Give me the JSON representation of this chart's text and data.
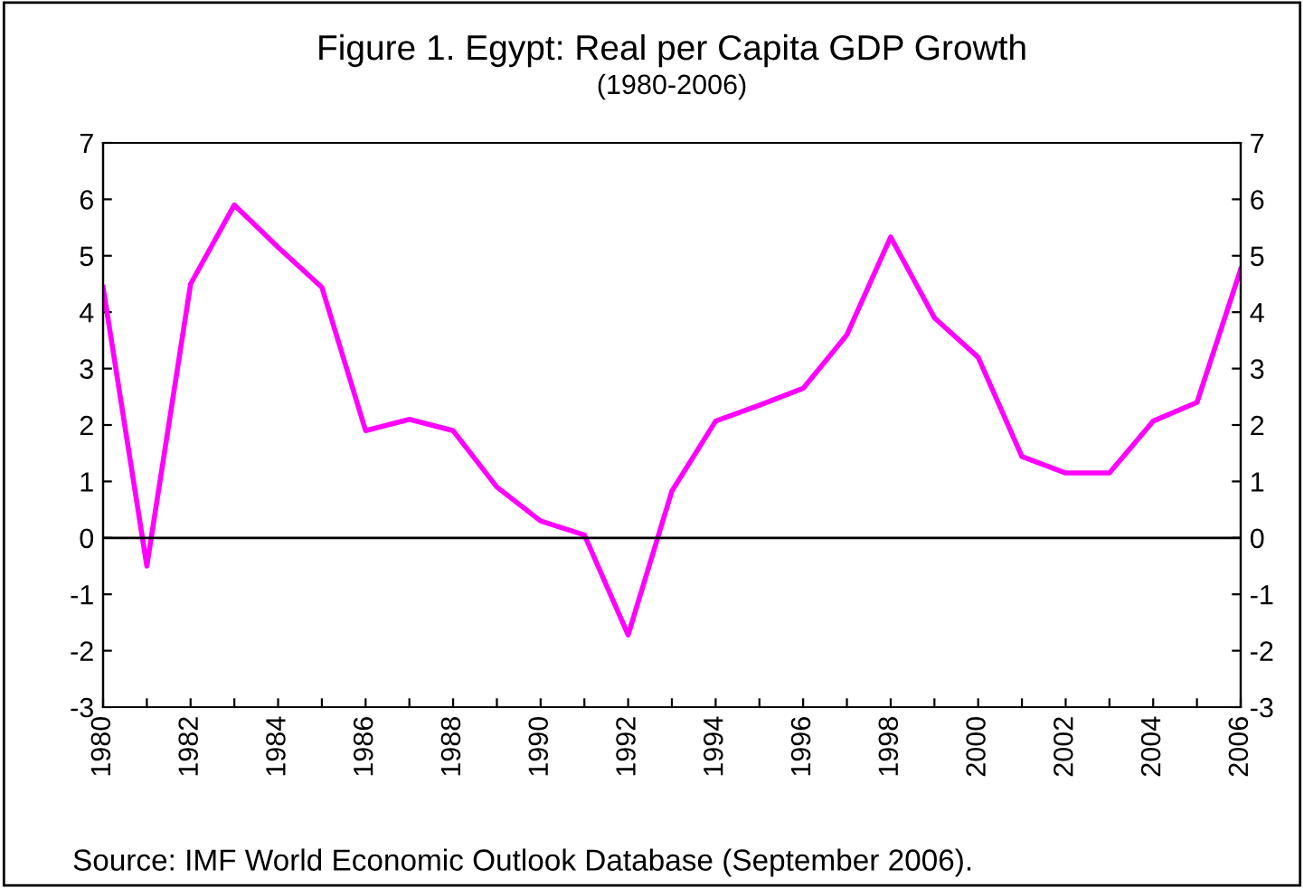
{
  "chart_data": {
    "type": "line",
    "title": "Figure 1. Egypt: Real per Capita GDP Growth",
    "subtitle": "(1980-2006)",
    "x": [
      1980,
      1981,
      1982,
      1983,
      1984,
      1985,
      1986,
      1987,
      1988,
      1989,
      1990,
      1991,
      1992,
      1993,
      1994,
      1995,
      1996,
      1997,
      1998,
      1999,
      2000,
      2001,
      2002,
      2003,
      2004,
      2005,
      2006
    ],
    "series": [
      {
        "color": "#ff00ff",
        "values": [
          4.44,
          -0.5,
          4.5,
          5.9,
          5.15,
          4.44,
          1.9,
          2.1,
          1.9,
          0.9,
          0.3,
          0.05,
          -1.72,
          0.83,
          2.07,
          2.35,
          2.65,
          3.6,
          5.33,
          3.9,
          3.2,
          1.44,
          1.15,
          1.15,
          2.07,
          2.4,
          4.76
        ]
      }
    ],
    "xlim": [
      1980,
      2006
    ],
    "xticks": [
      1980,
      {
        "value": 1981,
        "label": null
      },
      1982,
      {
        "value": 1983,
        "label": null
      },
      1984,
      {
        "value": 1985,
        "label": null
      },
      1986,
      {
        "value": 1987,
        "label": null
      },
      1988,
      {
        "value": 1989,
        "label": null
      },
      1990,
      {
        "value": 1991,
        "label": null
      },
      1992,
      {
        "value": 1993,
        "label": null
      },
      1994,
      {
        "value": 1995,
        "label": null
      },
      1996,
      {
        "value": 1997,
        "label": null
      },
      1998,
      {
        "value": 1999,
        "label": null
      },
      2000,
      {
        "value": 2001,
        "label": null
      },
      2002,
      {
        "value": 2003,
        "label": null
      },
      2004,
      {
        "value": 2005,
        "label": null
      },
      2006
    ],
    "ylim": [
      -3,
      7
    ],
    "yticks": [
      -3,
      -2,
      -1,
      0,
      1,
      2,
      3,
      4,
      5,
      6,
      7
    ],
    "y2lim": [
      -3,
      7
    ],
    "y2ticks": [
      -3,
      -2,
      -1,
      0,
      1,
      2,
      3,
      4,
      5,
      6,
      7
    ],
    "ref_lines": [
      {
        "axis": "y",
        "value": 0,
        "color": "#000000"
      }
    ],
    "grid": false,
    "legend": false,
    "marker": "none",
    "line_style": "solid",
    "annotations": [
      "Source: IMF World Economic Outlook Database (September 2006)."
    ]
  }
}
